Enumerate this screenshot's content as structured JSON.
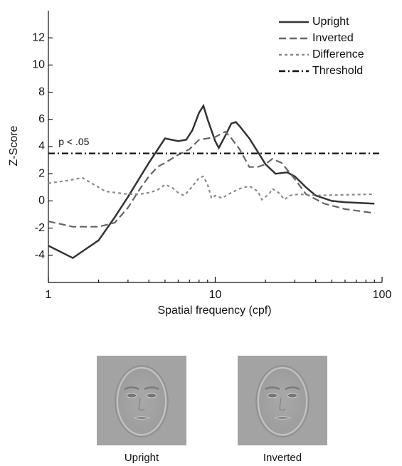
{
  "chart_data": {
    "type": "line",
    "xlabel": "Spatial frequency (cpf)",
    "ylabel": "Z-Score",
    "annotation": {
      "text": "p < .05",
      "x": 1.15,
      "y": 4.3
    },
    "xlim": [
      1,
      100
    ],
    "xticks": [
      1,
      10,
      100
    ],
    "xscale": "log",
    "ylim": [
      -6,
      14
    ],
    "yticks": [
      -4,
      -2,
      0,
      2,
      4,
      6,
      8,
      10,
      12
    ],
    "legend": "upper right",
    "series": [
      {
        "name": "Upright",
        "color": "#333333",
        "dash": "solid",
        "x": [
          1,
          1.4,
          2,
          2.5,
          3,
          4,
          5,
          6,
          6.7,
          7.3,
          8,
          8.5,
          9,
          10,
          10.5,
          11.5,
          12.5,
          13.3,
          14,
          16,
          18,
          20,
          23,
          27,
          30,
          35,
          40,
          50,
          60,
          90
        ],
        "values": [
          -3.3,
          -4.2,
          -2.9,
          -1.2,
          0.3,
          2.8,
          4.6,
          4.4,
          4.5,
          5.2,
          6.5,
          7.0,
          6.0,
          4.4,
          3.9,
          4.8,
          5.7,
          5.8,
          5.5,
          4.6,
          3.6,
          2.7,
          2.0,
          2.1,
          1.8,
          1.0,
          0.4,
          0.0,
          -0.1,
          -0.2
        ]
      },
      {
        "name": "Inverted",
        "color": "#666666",
        "dash": "dashed",
        "x": [
          1,
          1.4,
          2,
          2.5,
          3,
          3.5,
          4,
          4.5,
          5,
          6,
          7,
          8,
          9,
          10,
          11.5,
          12.5,
          14,
          16,
          18,
          20,
          22,
          25,
          30,
          35,
          45,
          60,
          90
        ],
        "values": [
          -1.5,
          -1.9,
          -1.9,
          -1.6,
          -0.5,
          0.8,
          1.8,
          2.5,
          2.8,
          3.4,
          3.8,
          4.5,
          4.6,
          4.7,
          5.1,
          4.6,
          3.8,
          2.5,
          2.5,
          2.7,
          3.1,
          2.8,
          1.6,
          0.5,
          -0.2,
          -0.6,
          -0.9
        ]
      },
      {
        "name": "Difference",
        "color": "#8a8a8a",
        "dash": "dotted",
        "x": [
          1,
          1.3,
          1.6,
          2,
          2.2,
          3,
          3.5,
          4,
          4.5,
          5,
          5.5,
          6,
          6.5,
          7,
          8,
          8.5,
          9,
          9.5,
          10,
          11,
          12,
          14,
          16,
          18,
          19,
          21,
          22,
          24,
          26,
          28,
          32,
          40,
          90
        ],
        "values": [
          1.3,
          1.5,
          1.7,
          1.0,
          0.7,
          0.5,
          0.5,
          0.6,
          0.8,
          1.2,
          1.0,
          0.6,
          0.4,
          0.8,
          1.7,
          1.8,
          1.2,
          0.2,
          0.4,
          0.2,
          0.5,
          0.9,
          1.1,
          0.7,
          0.1,
          0.5,
          0.9,
          0.6,
          0.1,
          0.4,
          0.5,
          0.4,
          0.5
        ]
      },
      {
        "name": "Threshold",
        "color": "#111111",
        "dash": "dashdot",
        "x": [
          1,
          100
        ],
        "values": [
          3.5,
          3.5
        ]
      }
    ]
  },
  "images": [
    {
      "label": "Upright"
    },
    {
      "label": "Inverted"
    }
  ]
}
